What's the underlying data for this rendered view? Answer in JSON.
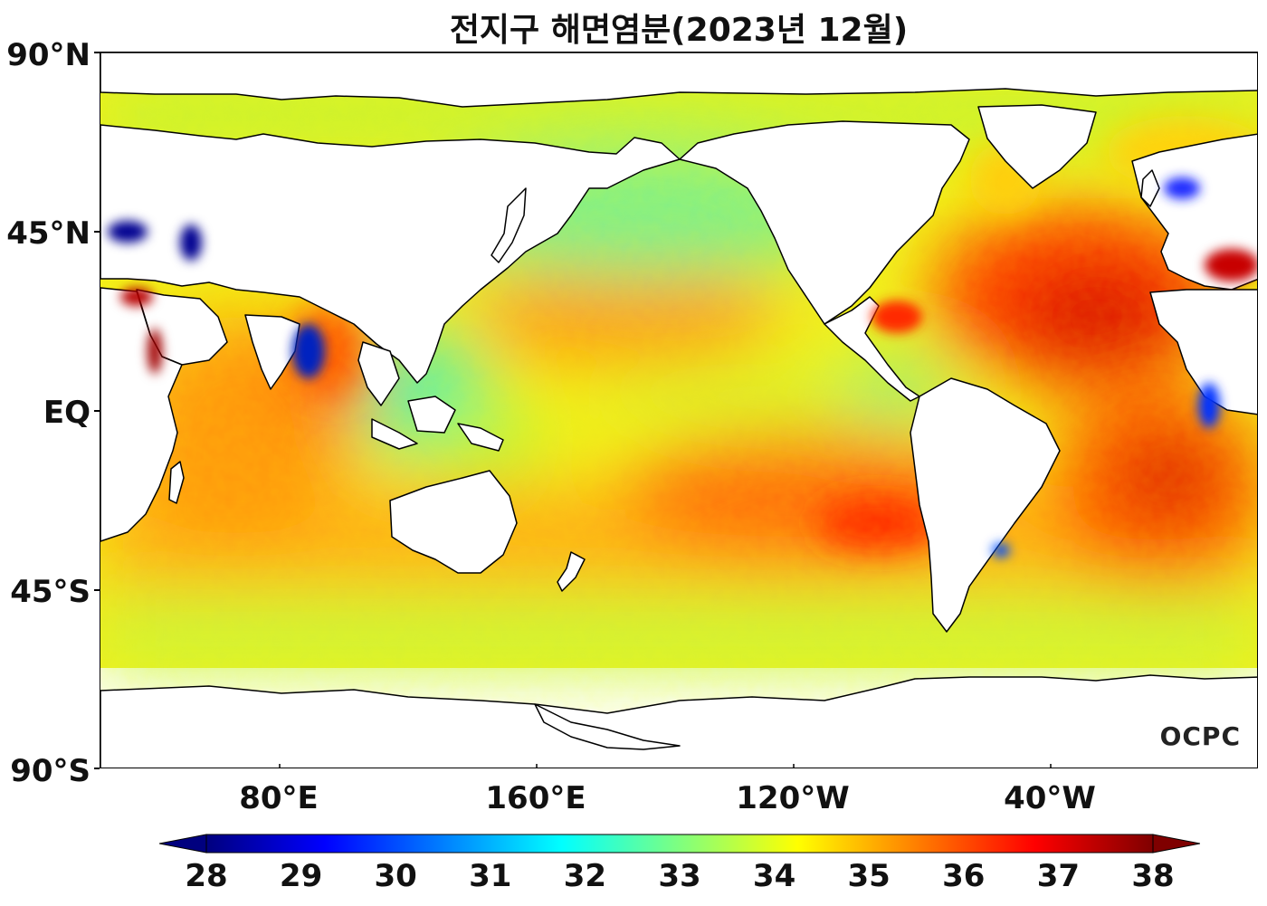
{
  "title": "전지구 해면염분(2023년 12월)",
  "credit": "OCPC",
  "lat_labels": [
    "90°N",
    "45°N",
    "EQ",
    "45°S",
    "90°S"
  ],
  "lon_labels": [
    "80°E",
    "160°E",
    "120°W",
    "40°W"
  ],
  "colorbar": {
    "ticks": [
      "28",
      "29",
      "30",
      "31",
      "32",
      "33",
      "34",
      "35",
      "36",
      "37",
      "38"
    ],
    "min": 28,
    "max": 38,
    "colormap": "jet",
    "colors": [
      "#00007f",
      "#0000ff",
      "#007fff",
      "#00ffff",
      "#7fff7f",
      "#ffff00",
      "#ff7f00",
      "#ff0000",
      "#7f0000"
    ]
  }
}
